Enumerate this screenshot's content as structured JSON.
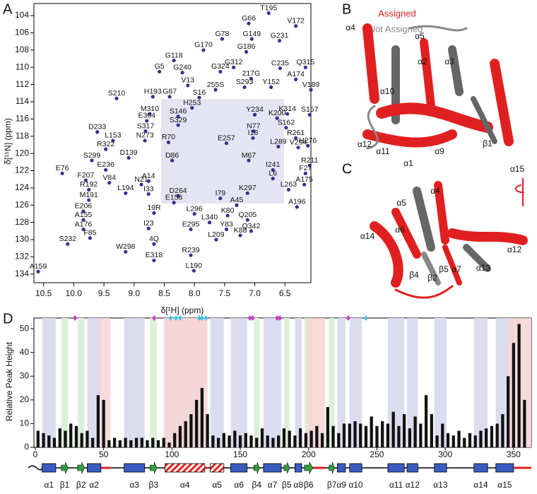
{
  "panels": [
    "A",
    "B",
    "C",
    "D"
  ],
  "chart_data": [
    {
      "type": "scatter",
      "x_label": "δ[¹H] (ppm)",
      "y_label": "δ[¹⁵N] (ppm)",
      "xlim": [
        10.66,
        6.07
      ],
      "ylim": [
        102.6,
        135
      ],
      "xticks": [
        {
          "value": 10.5,
          "label": "10.5"
        },
        {
          "value": 10.0,
          "label": "10.0"
        },
        {
          "value": 9.5,
          "label": "9.5"
        },
        {
          "value": 9.0,
          "label": "9.0"
        },
        {
          "value": 8.5,
          "label": "8.5"
        },
        {
          "value": 8.0,
          "label": "8.0"
        },
        {
          "value": 7.5,
          "label": "7.5"
        },
        {
          "value": 7.0,
          "label": "7.0"
        },
        {
          "value": 6.5,
          "label": "6.5"
        }
      ],
      "yticks": [
        104,
        106,
        108,
        110,
        112,
        114,
        116,
        118,
        120,
        122,
        124,
        126,
        128,
        130,
        132,
        134
      ],
      "color": "#3b2e8f",
      "labels": [
        "T195",
        "G66",
        "V172",
        "G78",
        "G149",
        "G231",
        "G170",
        "G186",
        "G118",
        "G312",
        "C235",
        "Q315",
        "G5",
        "G240",
        "G324",
        "217G",
        "A174",
        "V13",
        "255S",
        "S293",
        "Y152",
        "V189",
        "S210",
        "H193",
        "G87",
        "S16",
        "H253",
        "K314",
        "S157",
        "M310",
        "S146",
        "Y234",
        "E304",
        "S329",
        "K200",
        "S317",
        "S162",
        "D233",
        "N77",
        "L153",
        "N273",
        "R70",
        "I18",
        "R261",
        "H276",
        "R322",
        "E257",
        "L289",
        "V294",
        "S299",
        "D139",
        "D86",
        "M67",
        "E236",
        "R211",
        "E76",
        "I241",
        "F27",
        "F207",
        "V84",
        "N21",
        "A14",
        "L6",
        "A175",
        "R192",
        "L194",
        "I33",
        "D264",
        "L263",
        "M191",
        "E158",
        "K297",
        "I79",
        "A45",
        "A196",
        "E206",
        "19R",
        "L296",
        "K80",
        "A155",
        "Q205",
        "L340",
        "A176",
        "I23",
        "E295",
        "Y83",
        "Q342",
        "K88",
        "F85",
        "L209",
        "S232",
        "4Q",
        "W298",
        "R239",
        "E318",
        "L190",
        "A159"
      ],
      "x": [
        6.77,
        7.1,
        6.32,
        7.54,
        7.05,
        6.59,
        7.85,
        7.14,
        8.34,
        7.35,
        6.58,
        6.16,
        8.58,
        8.2,
        7.57,
        7.06,
        6.32,
        8.11,
        7.65,
        7.17,
        6.73,
        6.07,
        9.29,
        8.69,
        8.41,
        7.92,
        8.04,
        6.46,
        6.09,
        8.74,
        8.27,
        7.0,
        8.79,
        8.27,
        6.63,
        8.81,
        6.48,
        9.61,
        7.02,
        9.35,
        8.82,
        8.43,
        7.03,
        6.32,
        6.12,
        9.47,
        7.47,
        6.61,
        6.28,
        9.7,
        9.09,
        8.37,
        7.1,
        9.47,
        6.09,
        10.19,
        6.7,
        6.16,
        9.8,
        9.41,
        8.88,
        8.76,
        6.7,
        6.18,
        9.75,
        9.14,
        8.76,
        8.27,
        6.44,
        9.75,
        8.34,
        7.12,
        7.57,
        7.3,
        6.3,
        9.84,
        8.67,
        8.0,
        7.45,
        9.84,
        7.12,
        7.75,
        9.84,
        8.76,
        8.06,
        7.47,
        7.06,
        7.24,
        9.73,
        7.64,
        10.1,
        8.67,
        9.14,
        8.06,
        8.67,
        8.01,
        10.59
      ],
      "values": [
        103.3,
        104.5,
        104.8,
        106.3,
        106.3,
        106.5,
        107.6,
        107.8,
        108.8,
        109.6,
        109.7,
        109.6,
        110.1,
        110.2,
        110.1,
        110.9,
        111.0,
        111.7,
        112.2,
        111.9,
        111.9,
        112.2,
        113.2,
        113.0,
        113.0,
        113.1,
        114.3,
        115.0,
        115.1,
        115.0,
        115.3,
        115.1,
        115.8,
        116.3,
        115.5,
        117.0,
        116.6,
        117.1,
        117.0,
        118.1,
        118.1,
        118.3,
        117.8,
        117.8,
        118.7,
        119.1,
        118.4,
        118.8,
        118.9,
        120.4,
        120.1,
        120.4,
        120.4,
        121.5,
        121.0,
        121.9,
        121.5,
        121.9,
        122.7,
        123.0,
        123.2,
        122.8,
        122.5,
        123.2,
        123.8,
        124.2,
        124.3,
        124.5,
        123.8,
        125.0,
        125.3,
        124.2,
        124.8,
        125.6,
        125.8,
        126.3,
        126.5,
        126.6,
        126.8,
        127.3,
        127.3,
        127.6,
        128.4,
        128.3,
        128.4,
        128.4,
        128.6,
        129.1,
        129.4,
        129.6,
        130.1,
        130.1,
        131.0,
        131.4,
        132.0,
        133.2,
        133.3
      ]
    },
    {
      "type": "bar",
      "y_label": "Relative Peak Height",
      "xlim": [
        -1,
        363
      ],
      "ylim": [
        0,
        54.5
      ],
      "xticks": [
        0,
        50,
        100,
        150,
        200,
        250,
        300,
        350
      ],
      "yticks": [
        0,
        10,
        20,
        30,
        40,
        50
      ],
      "color": "#111111",
      "x": [
        2,
        6,
        10,
        14,
        18,
        22,
        26,
        30,
        34,
        38,
        42,
        46,
        50,
        54,
        58,
        62,
        66,
        70,
        74,
        78,
        82,
        86,
        90,
        94,
        98,
        102,
        106,
        110,
        114,
        118,
        122,
        126,
        130,
        134,
        138,
        142,
        146,
        150,
        154,
        158,
        162,
        166,
        170,
        174,
        178,
        182,
        186,
        190,
        194,
        198,
        202,
        206,
        210,
        214,
        218,
        222,
        226,
        230,
        234,
        238,
        242,
        246,
        250,
        254,
        258,
        262,
        266,
        270,
        274,
        278,
        282,
        286,
        290,
        294,
        298,
        302,
        306,
        310,
        314,
        318,
        322,
        326,
        330,
        334,
        338,
        342,
        346,
        350,
        354,
        358
      ],
      "values": [
        7,
        6,
        5,
        4,
        8,
        7,
        10,
        9,
        6,
        7,
        4,
        22,
        20,
        3,
        4,
        3,
        4,
        3,
        4,
        4,
        3,
        4,
        3,
        4,
        2,
        6,
        9,
        11,
        14,
        20,
        25,
        14,
        5,
        4,
        6,
        5,
        7,
        5,
        6,
        5,
        4,
        8,
        5,
        4,
        5,
        8,
        7,
        5,
        8,
        6,
        7,
        9,
        6,
        17,
        9,
        6,
        10,
        10,
        11,
        10,
        9,
        13,
        9,
        11,
        10,
        15,
        9,
        14,
        8,
        13,
        10,
        22,
        14,
        5,
        10,
        6,
        5,
        7,
        4,
        6,
        5,
        7,
        8,
        9,
        10,
        14,
        30,
        44,
        52,
        20
      ],
      "unassigned_regions": [
        [
          47,
          55
        ],
        [
          94,
          126
        ],
        [
          199,
          212
        ],
        [
          346,
          363
        ]
      ],
      "magenta_markers": [
        29,
        87,
        157,
        159,
        177,
        179,
        229
      ],
      "cyan_markers": [
        99,
        103,
        106,
        120,
        122,
        125,
        242
      ],
      "elements": [
        {
          "name": "α1",
          "kind": "helix",
          "start": 5,
          "end": 15
        },
        {
          "name": "β1",
          "kind": "strand",
          "start": 19,
          "end": 24
        },
        {
          "name": "β2",
          "kind": "strand",
          "start": 31,
          "end": 36
        },
        {
          "name": "α2",
          "kind": "helix",
          "start": 38,
          "end": 48
        },
        {
          "name": "α3",
          "kind": "helix",
          "start": 65,
          "end": 80
        },
        {
          "name": "β3",
          "kind": "strand",
          "start": 84,
          "end": 89
        },
        {
          "name": "α4",
          "kind": "helix",
          "assigned": false,
          "start": 95,
          "end": 124
        },
        {
          "name": "α5",
          "kind": "helix",
          "assigned": false,
          "start": 128,
          "end": 138
        },
        {
          "name": "α6",
          "kind": "helix",
          "start": 143,
          "end": 155
        },
        {
          "name": "β4",
          "kind": "strand",
          "start": 160,
          "end": 164
        },
        {
          "name": "α7",
          "kind": "helix",
          "start": 167,
          "end": 180
        },
        {
          "name": "β5",
          "kind": "strand",
          "start": 182,
          "end": 186
        },
        {
          "name": "α8",
          "kind": "helix",
          "start": 190,
          "end": 195
        },
        {
          "name": "β6",
          "kind": "strand",
          "start": 197,
          "end": 203
        },
        {
          "name": "β7",
          "kind": "strand",
          "start": 215,
          "end": 219
        },
        {
          "name": "α9",
          "kind": "helix",
          "start": 221,
          "end": 227
        },
        {
          "name": "α10",
          "kind": "helix",
          "start": 230,
          "end": 239
        },
        {
          "name": "α11",
          "kind": "helix",
          "start": 258,
          "end": 270
        },
        {
          "name": "α12",
          "kind": "helix",
          "start": 272,
          "end": 280
        },
        {
          "name": "α13",
          "kind": "helix",
          "start": 292,
          "end": 301
        },
        {
          "name": "α14",
          "kind": "helix",
          "start": 321,
          "end": 331
        },
        {
          "name": "α15",
          "kind": "helix",
          "start": 337,
          "end": 350
        }
      ]
    }
  ],
  "structure_legend": {
    "assigned": "Assigned",
    "not_assigned": "Not Assigned"
  },
  "structure_b_labels": [
    "α4",
    "α5",
    "α2",
    "α3",
    "α10",
    "α12",
    "α11",
    "α1",
    "α9",
    "β1",
    "α15"
  ],
  "structure_c_labels": [
    "α4",
    "α5",
    "α14",
    "α6",
    "α12",
    "α13",
    "α7",
    "β5",
    "β4",
    "β2"
  ]
}
